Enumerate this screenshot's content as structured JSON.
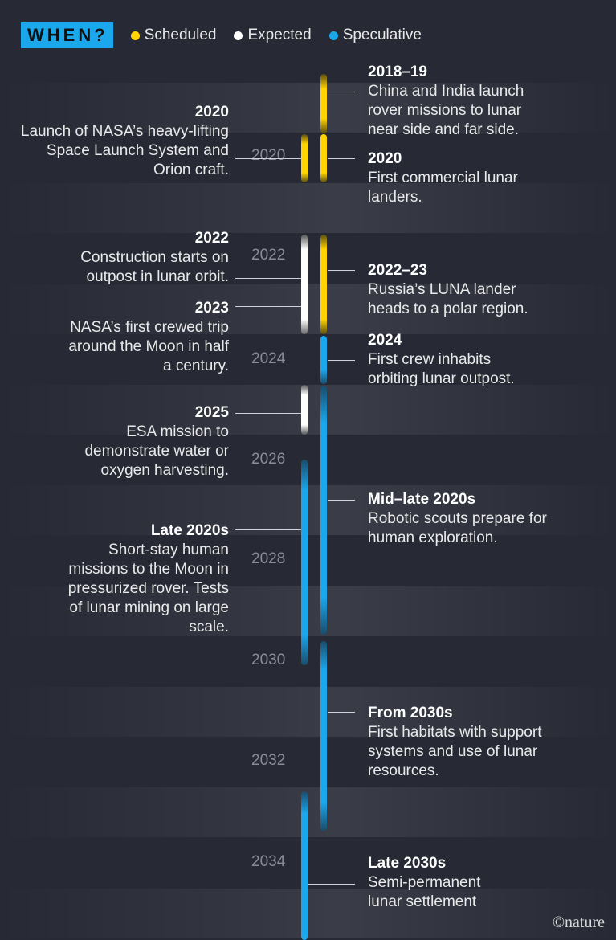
{
  "header": {
    "badge": "WHEN?",
    "legend": [
      {
        "label": "Scheduled",
        "color": "#ffd400"
      },
      {
        "label": "Expected",
        "color": "#ffffff"
      },
      {
        "label": "Speculative",
        "color": "#1aa7ec"
      }
    ]
  },
  "years": [
    "2020",
    "2022",
    "2024",
    "2026",
    "2028",
    "2030",
    "2032",
    "2034"
  ],
  "events_left": [
    {
      "when": "2020",
      "desc": "Launch of NASA’s heavy-lifting Space Launch System and Orion craft."
    },
    {
      "when": "2022",
      "desc": "Construction starts on outpost in lunar orbit."
    },
    {
      "when": "2023",
      "desc": "NASA’s first crewed trip around the Moon in half a century."
    },
    {
      "when": "2025",
      "desc": "ESA mission to demonstrate water or oxygen harvesting."
    },
    {
      "when": "Late 2020s",
      "desc": "Short-stay human missions to the Moon in pressurized rover. Tests of lunar mining on large scale."
    }
  ],
  "events_right": [
    {
      "when": "2018–19",
      "desc": "China and India launch rover missions to lunar near side and far side."
    },
    {
      "when": "2020",
      "desc": "First commercial lunar landers."
    },
    {
      "when": "2022–23",
      "desc": "Russia’s LUNA lander heads to a polar region."
    },
    {
      "when": "2024",
      "desc": "First crew inhabits orbiting lunar outpost."
    },
    {
      "when": "Mid–late 2020s",
      "desc": "Robotic scouts prepare for human exploration."
    },
    {
      "when": "From 2030s",
      "desc": "First habitats with support systems and use of lunar resources."
    },
    {
      "when": "Late 2030s",
      "desc": "Semi-permanent lunar settlement"
    }
  ],
  "credit": "©nature"
}
